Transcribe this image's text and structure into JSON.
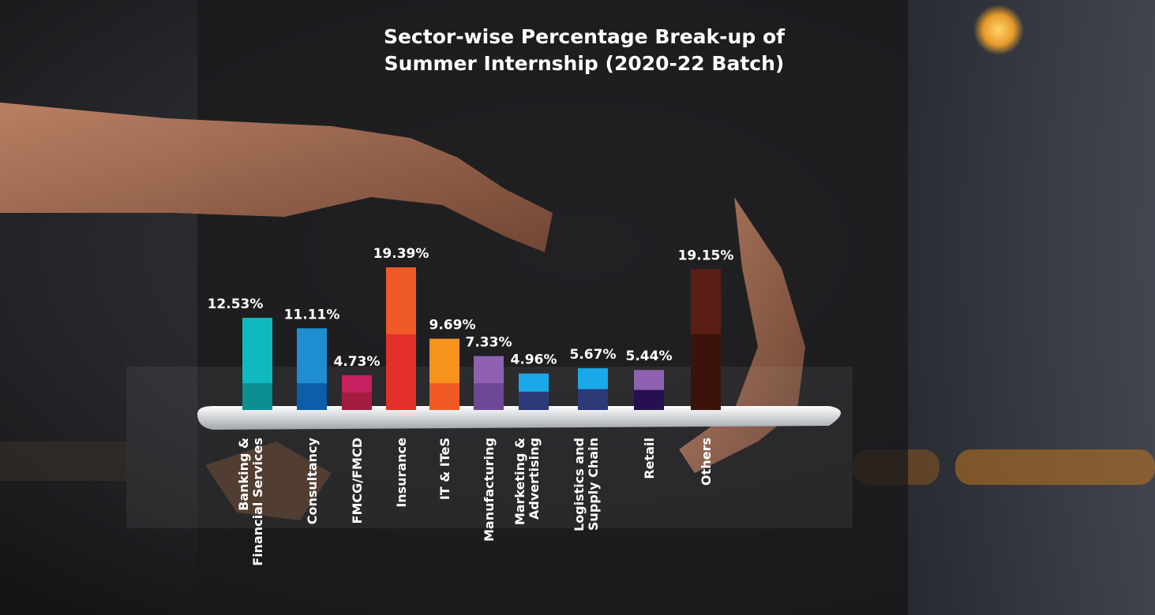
{
  "chart_data": {
    "type": "bar",
    "title": "Sector-wise Percentage Break-up of Summer Internship (2020-22 Batch)",
    "title_lines": [
      "Sector-wise Percentage Break-up of",
      "Summer Internship (2020-22 Batch)"
    ],
    "categories": [
      [
        "Banking &",
        "Financial Services"
      ],
      [
        "Consultancy"
      ],
      [
        "FMCG/FMCD"
      ],
      [
        "Insurance"
      ],
      [
        "IT & ITeS"
      ],
      [
        "Manufacturing"
      ],
      [
        "Marketing &",
        "Advertising"
      ],
      [
        "Logistics and",
        "Supply Chain"
      ],
      [
        "Retail"
      ],
      [
        "Others"
      ]
    ],
    "values": [
      12.53,
      11.11,
      4.73,
      19.39,
      9.69,
      7.33,
      4.96,
      5.67,
      5.44,
      19.15
    ],
    "value_labels": [
      "12.53%",
      "11.11%",
      "4.73%",
      "19.39%",
      "9.69%",
      "7.33%",
      "4.96%",
      "5.67%",
      "5.44%",
      "19.15%"
    ],
    "bar_colors": [
      {
        "top": "#10b9bd",
        "bottom": "#0b8f92"
      },
      {
        "top": "#1f8ed0",
        "bottom": "#0c5ea8"
      },
      {
        "top": "#c72060",
        "bottom": "#a31c40"
      },
      {
        "top": "#ef5a28",
        "bottom": "#e3302a"
      },
      {
        "top": "#f7921e",
        "bottom": "#f15a24"
      },
      {
        "top": "#8e62b0",
        "bottom": "#6e4895"
      },
      {
        "top": "#1aa9e8",
        "bottom": "#2e3a78"
      },
      {
        "top": "#1aa9e8",
        "bottom": "#2e3a78"
      },
      {
        "top": "#8e62b0",
        "bottom": "#26104f"
      },
      {
        "top": "#5b1e14",
        "bottom": "#3c120b"
      }
    ],
    "legend": "none",
    "grid": false
  }
}
